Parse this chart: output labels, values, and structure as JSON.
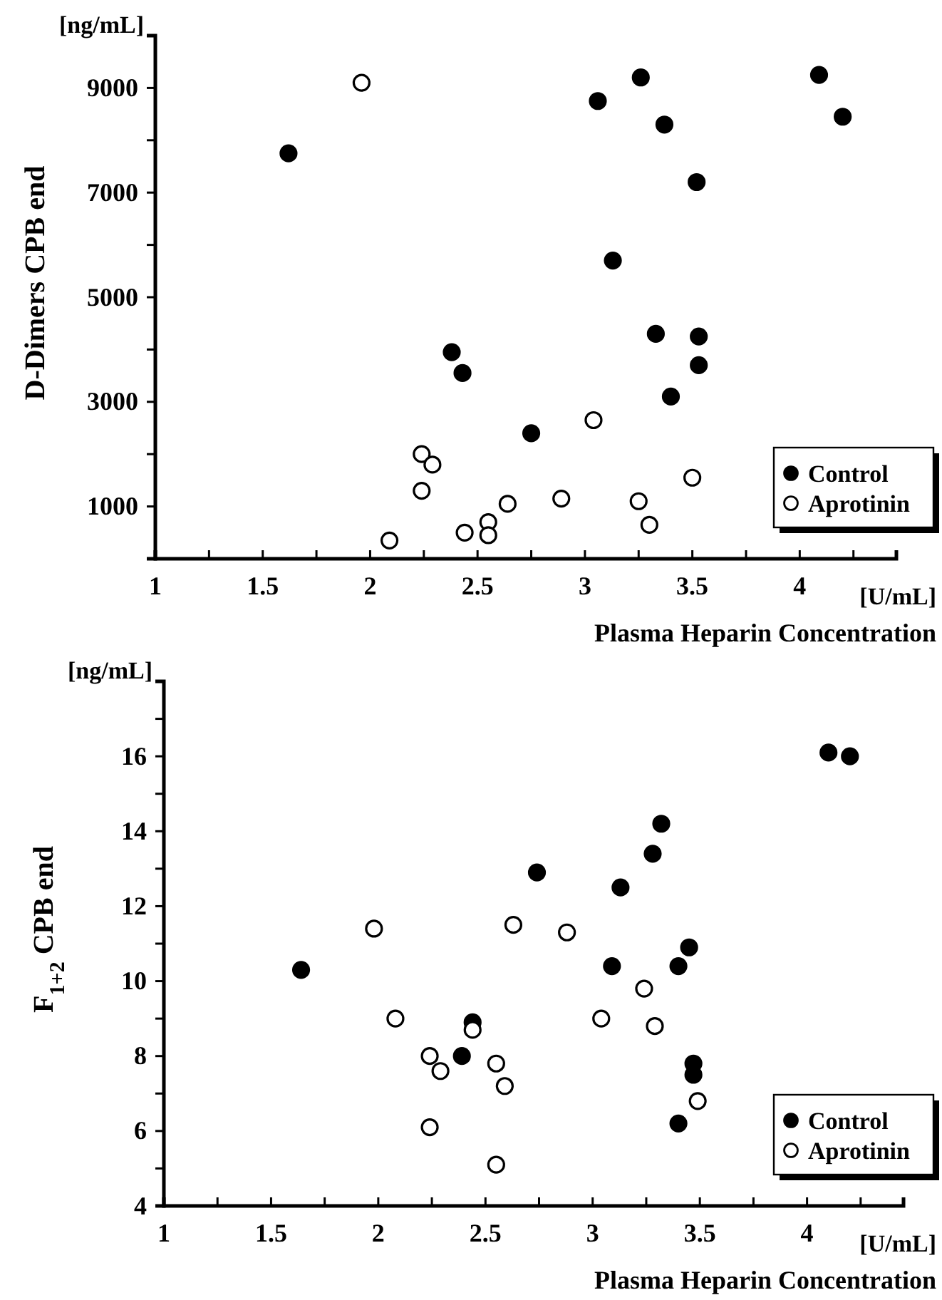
{
  "chart_data": [
    {
      "type": "scatter",
      "ylabel": "D-Dimers CPB end",
      "xlabel": "Plasma Heparin Concentration",
      "annotations": [
        "[ng/mL]",
        "[U/mL]"
      ],
      "marker": "circle",
      "legend": "bottom right",
      "xlim": [
        1,
        4.45
      ],
      "xticks": [
        1,
        {
          "value": 1.25,
          "label": null
        },
        1.5,
        {
          "value": 1.75,
          "label": null
        },
        2,
        {
          "value": 2.25,
          "label": null
        },
        2.5,
        {
          "value": 2.75,
          "label": null
        },
        3,
        {
          "value": 3.25,
          "label": null
        },
        3.5,
        {
          "value": 3.75,
          "label": null
        },
        4,
        {
          "value": 4.25,
          "label": null
        }
      ],
      "ylim": [
        0,
        10000
      ],
      "yticks": [
        {
          "value": 0,
          "label": null
        },
        1000,
        {
          "value": 2000,
          "label": null
        },
        3000,
        {
          "value": 4000,
          "label": null
        },
        5000,
        {
          "value": 6000,
          "label": null
        },
        7000,
        {
          "value": 8000,
          "label": null
        },
        9000,
        {
          "value": 10000,
          "label": null
        }
      ],
      "series": [
        {
          "name": "Control",
          "color": "#000000",
          "x": [
            1.62,
            2.38,
            2.43,
            2.75,
            3.06,
            3.13,
            3.26,
            3.33,
            3.37,
            3.4,
            3.52,
            3.53,
            3.53,
            4.09,
            4.2
          ],
          "values": [
            7750,
            3950,
            3550,
            2400,
            8750,
            5700,
            9200,
            4300,
            8300,
            3100,
            7200,
            4250,
            3700,
            9250,
            8450
          ]
        },
        {
          "name": "Aprotinin",
          "color": "#ffffff",
          "x": [
            1.96,
            2.09,
            2.24,
            2.29,
            2.24,
            2.44,
            2.55,
            2.55,
            2.64,
            2.89,
            3.04,
            3.25,
            3.3,
            3.5
          ],
          "values": [
            9100,
            350,
            2000,
            1800,
            1300,
            500,
            700,
            450,
            1050,
            1150,
            2650,
            1100,
            650,
            1550
          ]
        }
      ]
    },
    {
      "type": "scatter",
      "ylabel": "F$_{1+2}$ CPB end",
      "xlabel": "Plasma Heparin Concentration",
      "annotations": [
        "[ng/mL]",
        "[U/mL]"
      ],
      "marker": "circle",
      "legend": "bottom right",
      "xlim": [
        1,
        4.45
      ],
      "xticks": [
        1,
        {
          "value": 1.25,
          "label": null
        },
        1.5,
        {
          "value": 1.75,
          "label": null
        },
        2,
        {
          "value": 2.25,
          "label": null
        },
        2.5,
        {
          "value": 2.75,
          "label": null
        },
        3,
        {
          "value": 3.25,
          "label": null
        },
        3.5,
        {
          "value": 3.75,
          "label": null
        },
        4,
        {
          "value": 4.25,
          "label": null
        }
      ],
      "ylim": [
        4,
        18
      ],
      "yticks": [
        4,
        {
          "value": 5,
          "label": null
        },
        6,
        {
          "value": 7,
          "label": null
        },
        8,
        {
          "value": 9,
          "label": null
        },
        10,
        {
          "value": 11,
          "label": null
        },
        12,
        {
          "value": 13,
          "label": null
        },
        14,
        {
          "value": 15,
          "label": null
        },
        16,
        {
          "value": 17,
          "label": null
        },
        {
          "value": 18,
          "label": null
        }
      ],
      "series": [
        {
          "name": "Control",
          "color": "#000000",
          "x": [
            1.64,
            2.44,
            2.39,
            2.74,
            3.09,
            3.13,
            3.28,
            3.32,
            3.4,
            3.45,
            3.47,
            3.47,
            3.4,
            4.1,
            4.2
          ],
          "values": [
            10.3,
            8.9,
            8.0,
            12.9,
            10.4,
            12.5,
            13.4,
            14.2,
            10.4,
            10.9,
            7.8,
            7.5,
            6.2,
            16.1,
            16.0
          ]
        },
        {
          "name": "Aprotinin",
          "color": "#ffffff",
          "x": [
            1.98,
            2.08,
            2.24,
            2.29,
            2.24,
            2.44,
            2.55,
            2.59,
            2.55,
            2.63,
            2.88,
            3.04,
            3.24,
            3.29,
            3.49
          ],
          "values": [
            11.4,
            9.0,
            8.0,
            7.6,
            6.1,
            8.7,
            7.8,
            7.2,
            5.1,
            11.5,
            11.3,
            9.0,
            9.8,
            8.8,
            6.8
          ]
        }
      ]
    }
  ]
}
